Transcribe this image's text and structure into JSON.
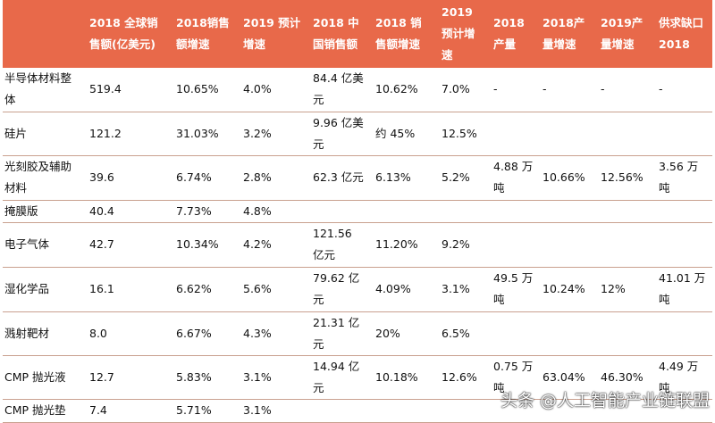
{
  "header": [
    "",
    "2018 全球销售额(亿美元)",
    "2018销售额增速",
    "2019 预计增速",
    "2018 中国销售额",
    "2018 销售额增速",
    "2019 预计增速",
    "2018 产量",
    "2018产量增速",
    "2019产量增速",
    "供求缺口 2018"
  ],
  "rows": [
    [
      "半导体材料整体",
      "519.4",
      "10.65%",
      "4.0%",
      "84.4 亿美元",
      "10.62%",
      "7.0%",
      "-",
      "-",
      "-",
      "-"
    ],
    [
      "硅片",
      "121.2",
      "31.03%",
      "3.2%",
      "9.96 亿美元",
      "约 45%",
      "12.5%",
      "",
      "",
      "",
      ""
    ],
    [
      "光刻胶及辅助材料",
      "39.6",
      "6.74%",
      "2.8%",
      "62.3 亿元",
      "6.13%",
      "5.2%",
      "4.88 万吨",
      "10.66%",
      "12.56%",
      "3.56 万吨"
    ],
    [
      "掩膜版",
      "40.4",
      "7.73%",
      "4.8%",
      "",
      "",
      "",
      "",
      "",
      "",
      ""
    ],
    [
      "电子气体",
      "42.7",
      "10.34%",
      "4.2%",
      "121.56 亿元",
      "11.20%",
      "9.2%",
      "",
      "",
      "",
      ""
    ],
    [
      "湿化学品",
      "16.1",
      "6.62%",
      "5.6%",
      "79.62 亿元",
      "4.09%",
      "3.1%",
      "49.5 万吨",
      "10.24%",
      "12%",
      "41.01 万吨"
    ],
    [
      "溅射靶材",
      "8.0",
      "6.67%",
      "4.3%",
      "21.31 亿元",
      "20%",
      "6.5%",
      "",
      "",
      "",
      ""
    ],
    [
      "CMP 抛光液",
      "12.7",
      "5.83%",
      "3.1%",
      "14.94 亿元",
      "10.18%",
      "12.6%",
      "0.75 万吨",
      "63.04%",
      "46.30%",
      "4.49 万吨"
    ],
    [
      "CMP 抛光垫",
      "7.4",
      "5.71%",
      "3.1%",
      "",
      "",
      "",
      "",
      "",
      "",
      ""
    ]
  ],
  "watermark": "头条 @人工智能产业链联盟",
  "colors": {
    "header_bg": "#E8694A",
    "header_text": "#FFFFFF",
    "row_border": "#C9A08F"
  }
}
